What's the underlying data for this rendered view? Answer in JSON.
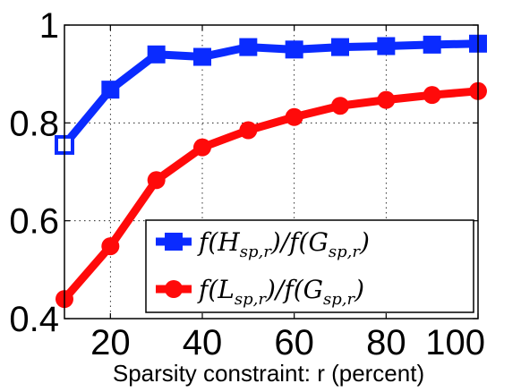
{
  "chart_data": {
    "type": "line",
    "title": "",
    "xlabel": "Sparsity constraint:  r (percent)",
    "ylabel": "",
    "x": [
      10,
      20,
      30,
      40,
      50,
      60,
      70,
      80,
      90,
      100
    ],
    "xlim": [
      10,
      100
    ],
    "ylim": [
      0.4,
      1.0
    ],
    "xticks": [
      "20",
      "40",
      "60",
      "80",
      "100"
    ],
    "xtick_values": [
      20,
      40,
      60,
      80,
      100
    ],
    "yticks": [
      "0.4",
      "0.6",
      "0.8",
      "1"
    ],
    "ytick_values": [
      0.4,
      0.6,
      0.8,
      1.0
    ],
    "grid": true,
    "legend_position": "bottom-right",
    "series": [
      {
        "name": "f(H_{sp,r}) / f(G_{sp,r})",
        "legend_main": [
          "f(",
          "H",
          ")/f(",
          "G",
          ")"
        ],
        "legend_sub": "sp,r",
        "color": "#0a2bff",
        "marker": "square",
        "values": [
          0.755,
          0.868,
          0.94,
          0.935,
          0.955,
          0.95,
          0.955,
          0.957,
          0.96,
          0.962
        ]
      },
      {
        "name": "f(L_{sp,r}) / f(G_{sp,r})",
        "legend_main": [
          "f(",
          "L",
          ")/f(",
          "G",
          ")"
        ],
        "legend_sub": "sp,r",
        "color": "#ff0a0a",
        "marker": "circle",
        "values": [
          0.44,
          0.548,
          0.683,
          0.75,
          0.785,
          0.812,
          0.835,
          0.847,
          0.857,
          0.865
        ]
      }
    ]
  }
}
